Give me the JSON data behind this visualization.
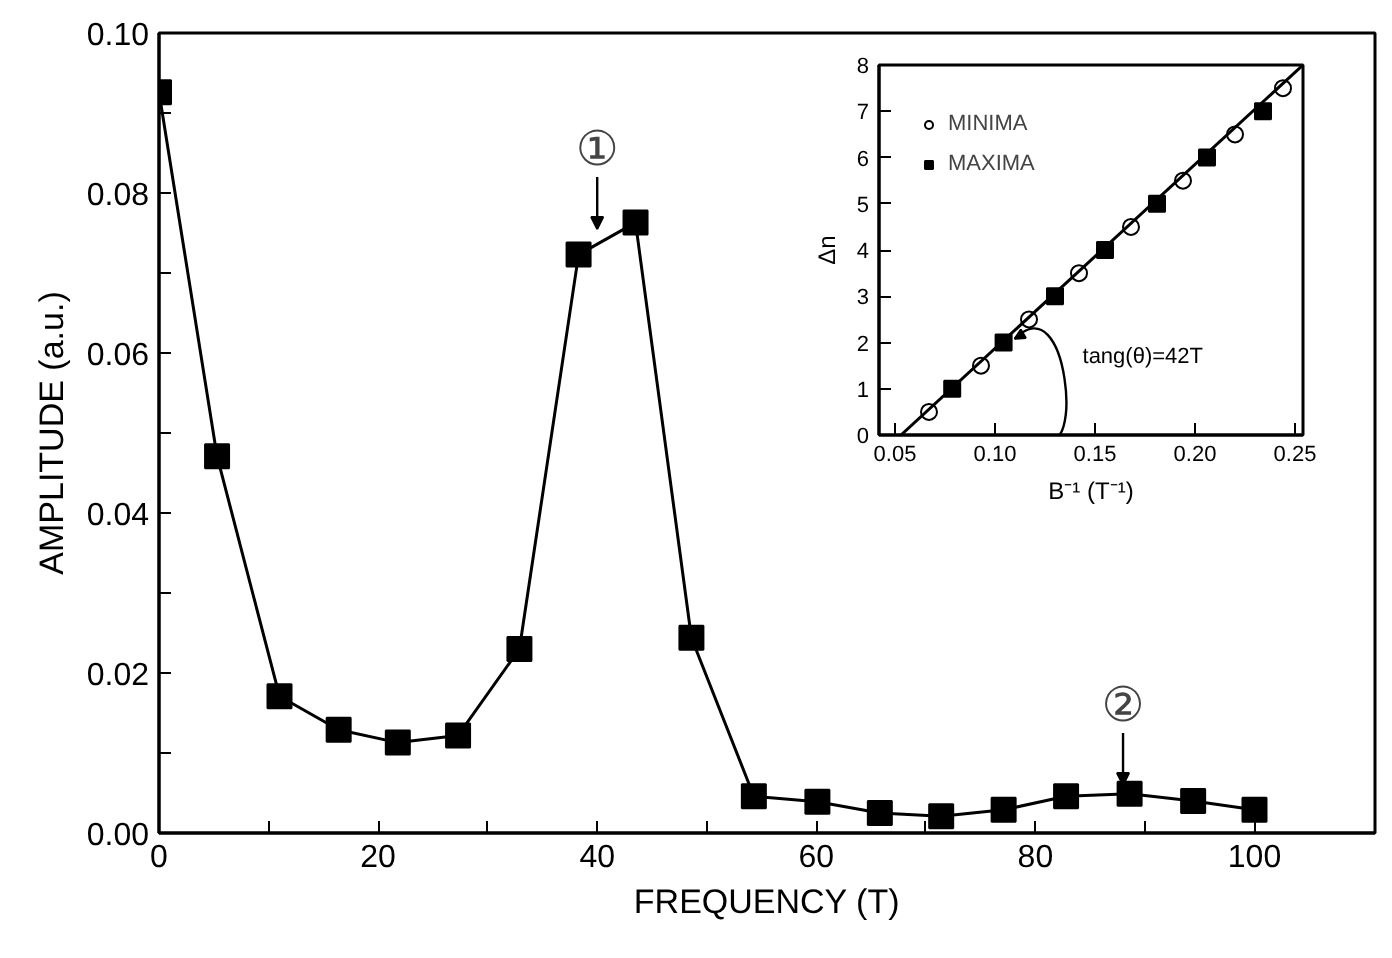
{
  "chart_data": [
    {
      "type": "line",
      "xlabel": "FREQUENCY (T)",
      "ylabel": "AMPLITUDE (a.u.)",
      "marker": "square",
      "line_style": "solid",
      "grid": false,
      "legend": false,
      "x": [
        0,
        5.3,
        11,
        16.4,
        21.8,
        27.3,
        32.9,
        38.3,
        43.5,
        48.6,
        54.3,
        60.1,
        65.8,
        71.4,
        77.1,
        82.8,
        88.6,
        94.4,
        100
      ],
      "series": [
        {
          "color": "#000000",
          "values": [
            0.0926,
            0.0471,
            0.0171,
            0.0129,
            0.0113,
            0.0122,
            0.023,
            0.0723,
            0.0763,
            0.0244,
            0.0046,
            0.0039,
            0.0025,
            0.0021,
            0.0029,
            0.0046,
            0.0049,
            0.004,
            0.0029
          ]
        }
      ],
      "xlim": [
        0,
        111
      ],
      "xticks": [
        0,
        {
          "value": 10,
          "label": null
        },
        20,
        {
          "value": 30,
          "label": null
        },
        40,
        {
          "value": 50,
          "label": null
        },
        60,
        {
          "value": 70,
          "label": null
        },
        80,
        {
          "value": 90,
          "label": null
        },
        100
      ],
      "ylim": [
        0,
        0.1
      ],
      "yticks": [
        {
          "value": 0,
          "label": "0.00"
        },
        {
          "value": 0.01,
          "label": null
        },
        {
          "value": 0.02,
          "label": "0.02"
        },
        {
          "value": 0.03,
          "label": null
        },
        {
          "value": 0.04,
          "label": "0.04"
        },
        {
          "value": 0.05,
          "label": null
        },
        {
          "value": 0.06,
          "label": "0.06"
        },
        {
          "value": 0.07,
          "label": null
        },
        {
          "value": 0.08,
          "label": "0.08"
        },
        {
          "value": 0.09,
          "label": null
        },
        {
          "value": 0.1,
          "label": "0.10"
        }
      ],
      "annotations": [
        {
          "text": "①",
          "x": 40,
          "y": 0.075
        },
        {
          "text": "②",
          "x": 88,
          "y": 0.0055
        }
      ]
    },
    {
      "type": "scatter",
      "xlabel": "B⁻¹ (T⁻¹)",
      "ylabel": "Δn",
      "grid": false,
      "legend": "top left",
      "series": [
        {
          "name": "MINIMA",
          "marker": "circle",
          "color": "#000000",
          "x": [
            0.067,
            0.093,
            0.117,
            0.142,
            0.168,
            0.194,
            0.22,
            0.244
          ],
          "values": [
            0.5,
            1.5,
            2.5,
            3.5,
            4.5,
            5.5,
            6.5,
            7.5
          ]
        },
        {
          "name": "MAXIMA",
          "marker": "square",
          "color": "#000000",
          "x": [
            0.0786,
            0.1043,
            0.13,
            0.155,
            0.181,
            0.206,
            0.234
          ],
          "values": [
            1,
            2,
            3,
            4,
            5,
            6,
            7
          ]
        },
        {
          "type": "line",
          "color": "#000000",
          "x": [
            0.053,
            0.254
          ],
          "values": [
            0,
            8
          ]
        }
      ],
      "xlim": [
        0.042,
        0.254
      ],
      "xticks": [
        {
          "value": 0.05,
          "label": "0.05"
        },
        {
          "value": 0.1,
          "label": "0.10"
        },
        {
          "value": 0.15,
          "label": "0.15"
        },
        {
          "value": 0.2,
          "label": "0.20"
        },
        {
          "value": 0.25,
          "label": "0.25"
        }
      ],
      "ylim": [
        0,
        8
      ],
      "yticks": [
        0,
        1,
        2,
        3,
        4,
        5,
        6,
        7,
        8
      ],
      "annotations": [
        "tang(θ)=42T"
      ]
    }
  ]
}
